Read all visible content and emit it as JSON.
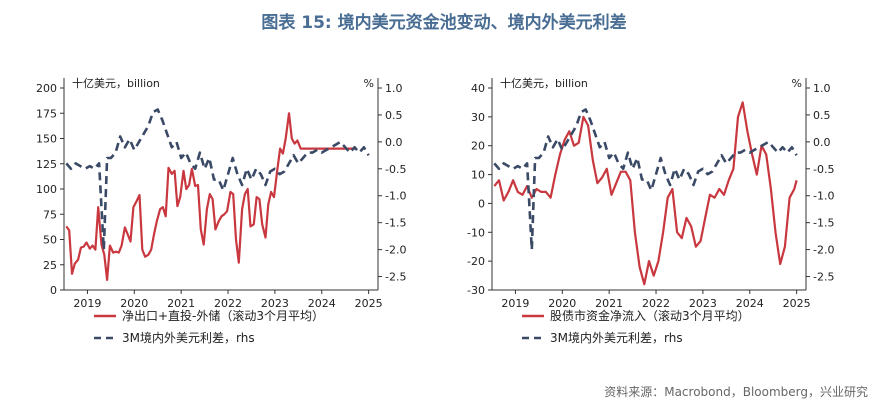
{
  "title": "图表 15: 境内美元资金池变动、境内外美元利差",
  "source": "资料来源：Macrobond，Bloomberg，兴业研究",
  "chart_data": [
    {
      "type": "line",
      "left_unit": "十亿美元，billion",
      "right_unit": "%",
      "left_ylim": [
        0,
        200
      ],
      "left_ticks": [
        "0",
        "25",
        "50",
        "75",
        "100",
        "125",
        "150",
        "175",
        "200"
      ],
      "right_ylim": [
        -2.75,
        1.0
      ],
      "right_ticks": [
        "1.0",
        "0.5",
        "0.0",
        "-0.5",
        "-1.0",
        "-1.5",
        "-2.0",
        "-2.5"
      ],
      "x_ticks": [
        "2019",
        "2020",
        "2021",
        "2022",
        "2023",
        "2024",
        "2025"
      ],
      "x_range": [
        2018.5,
        2025.2
      ],
      "series": [
        {
          "name": "净出口+直投-外储（滚动3个月平均）",
          "axis": "left",
          "color": "#c9373f",
          "style": "solid",
          "x": [
            2018.55,
            2018.61,
            2018.67,
            2018.73,
            2018.8,
            2018.86,
            2018.92,
            2018.98,
            2019.05,
            2019.11,
            2019.17,
            2019.23,
            2019.3,
            2019.36,
            2019.42,
            2019.48,
            2019.55,
            2019.61,
            2019.67,
            2019.73,
            2019.8,
            2019.86,
            2019.92,
            2019.98,
            2020.05,
            2020.11,
            2020.17,
            2020.23,
            2020.3,
            2020.36,
            2020.42,
            2020.48,
            2020.55,
            2020.61,
            2020.67,
            2020.73,
            2020.8,
            2020.86,
            2020.92,
            2020.98,
            2021.05,
            2021.11,
            2021.17,
            2021.23,
            2021.3,
            2021.36,
            2021.42,
            2021.48,
            2021.55,
            2021.61,
            2021.67,
            2021.73,
            2021.8,
            2021.86,
            2021.92,
            2021.98,
            2022.05,
            2022.11,
            2022.17,
            2022.23,
            2022.3,
            2022.36,
            2022.42,
            2022.48,
            2022.55,
            2022.61,
            2022.67,
            2022.73,
            2022.8,
            2022.86,
            2022.92,
            2022.98,
            2023.05,
            2023.11,
            2023.17,
            2023.23,
            2023.3,
            2023.36,
            2023.42,
            2023.48,
            2023.55,
            2023.61,
            2023.67,
            2023.73,
            2023.8,
            2023.86,
            2023.92,
            2023.98,
            2024.05,
            2024.11,
            2024.17,
            2024.23,
            2024.3,
            2024.36,
            2024.42,
            2024.48,
            2024.55,
            2024.61,
            2024.67,
            2024.73
          ],
          "values": [
            63,
            59,
            16,
            26,
            30,
            42,
            43,
            47,
            41,
            44,
            40,
            82,
            45,
            35,
            10,
            44,
            37,
            38,
            37,
            44,
            62,
            55,
            48,
            82,
            88,
            94,
            40,
            33,
            35,
            40,
            55,
            68,
            80,
            82,
            73,
            121,
            115,
            118,
            83,
            92,
            118,
            100,
            104,
            120,
            103,
            104,
            60,
            45,
            80,
            95,
            90,
            60,
            68,
            73,
            75,
            78,
            97,
            95,
            50,
            27,
            80,
            95,
            100,
            63,
            65,
            92,
            90,
            65,
            52,
            85,
            97,
            92,
            118,
            140,
            135,
            150,
            175,
            150,
            145,
            148,
            140,
            140,
            140,
            140,
            140,
            140,
            140,
            140,
            140,
            140,
            140,
            140,
            140,
            140,
            140,
            140,
            140,
            140,
            140,
            140
          ]
        },
        {
          "name": "3M境内外美元利差，rhs",
          "axis": "right",
          "color": "#3a4a66",
          "style": "dashed",
          "x": [
            2018.55,
            2018.65,
            2018.75,
            2018.85,
            2018.95,
            2019.05,
            2019.15,
            2019.25,
            2019.35,
            2019.42,
            2019.5,
            2019.6,
            2019.7,
            2019.8,
            2019.9,
            2020.0,
            2020.1,
            2020.2,
            2020.3,
            2020.4,
            2020.5,
            2020.6,
            2020.7,
            2020.8,
            2020.9,
            2021.0,
            2021.1,
            2021.2,
            2021.3,
            2021.4,
            2021.5,
            2021.6,
            2021.7,
            2021.8,
            2021.9,
            2022.0,
            2022.1,
            2022.2,
            2022.3,
            2022.4,
            2022.5,
            2022.6,
            2022.7,
            2022.8,
            2022.9,
            2023.0,
            2023.1,
            2023.2,
            2023.3,
            2023.4,
            2023.5,
            2023.6,
            2023.7,
            2023.8,
            2023.9,
            2024.0,
            2024.1,
            2024.2,
            2024.3,
            2024.4,
            2024.5,
            2024.6,
            2024.7,
            2024.8,
            2024.9,
            2025.0
          ],
          "values": [
            -0.4,
            -0.5,
            -0.4,
            -0.45,
            -0.5,
            -0.45,
            -0.5,
            -0.4,
            -2.0,
            -0.3,
            -0.3,
            -0.2,
            0.1,
            -0.1,
            0.05,
            -0.15,
            0.0,
            0.15,
            0.3,
            0.55,
            0.6,
            0.4,
            0.15,
            -0.1,
            0.0,
            -0.3,
            -0.2,
            -0.4,
            -0.5,
            -0.2,
            -0.5,
            -0.3,
            -0.7,
            -0.7,
            -0.9,
            -0.6,
            -0.3,
            -0.6,
            -0.8,
            -0.5,
            -0.7,
            -0.5,
            -0.6,
            -0.8,
            -0.55,
            -0.5,
            -0.6,
            -0.55,
            -0.4,
            -0.25,
            -0.4,
            -0.3,
            -0.2,
            -0.2,
            -0.15,
            -0.2,
            -0.15,
            -0.1,
            -0.05,
            0.0,
            -0.1,
            -0.2,
            -0.1,
            -0.2,
            -0.1,
            -0.25
          ]
        }
      ]
    },
    {
      "type": "line",
      "left_unit": "十亿美元，billion",
      "right_unit": "%",
      "left_ylim": [
        -30,
        40
      ],
      "left_ticks": [
        "-30",
        "-20",
        "-10",
        "0",
        "10",
        "20",
        "30",
        "40"
      ],
      "right_ylim": [
        -2.75,
        1.0
      ],
      "right_ticks": [
        "1.0",
        "0.5",
        "0.0",
        "-0.5",
        "-1.0",
        "-1.5",
        "-2.0",
        "-2.5"
      ],
      "x_ticks": [
        "2019",
        "2020",
        "2021",
        "2022",
        "2023",
        "2024",
        "2025"
      ],
      "x_range": [
        2018.5,
        2025.2
      ],
      "series": [
        {
          "name": "股债市资金净流入（滚动3个月平均）",
          "axis": "left",
          "color": "#c9373f",
          "style": "solid",
          "x": [
            2018.55,
            2018.65,
            2018.75,
            2018.85,
            2018.95,
            2019.05,
            2019.15,
            2019.25,
            2019.35,
            2019.45,
            2019.55,
            2019.65,
            2019.75,
            2019.85,
            2019.95,
            2020.05,
            2020.15,
            2020.25,
            2020.35,
            2020.45,
            2020.55,
            2020.65,
            2020.75,
            2020.85,
            2020.95,
            2021.05,
            2021.15,
            2021.25,
            2021.35,
            2021.45,
            2021.55,
            2021.65,
            2021.75,
            2021.85,
            2021.95,
            2022.05,
            2022.15,
            2022.25,
            2022.35,
            2022.45,
            2022.55,
            2022.65,
            2022.75,
            2022.85,
            2022.95,
            2023.05,
            2023.15,
            2023.25,
            2023.35,
            2023.45,
            2023.55,
            2023.65,
            2023.75,
            2023.85,
            2023.95,
            2024.05,
            2024.15,
            2024.25,
            2024.35,
            2024.45,
            2024.55,
            2024.65,
            2024.75,
            2024.85,
            2024.95,
            2025.0
          ],
          "values": [
            6,
            8,
            1,
            4,
            8,
            4,
            3,
            6,
            2,
            5,
            4,
            4,
            2,
            10,
            17,
            22,
            25,
            20,
            21,
            30,
            27,
            15,
            7,
            9,
            12,
            3,
            7,
            11,
            11,
            8,
            -10,
            -22,
            -28,
            -20,
            -25,
            -20,
            -10,
            2,
            5,
            -10,
            -12,
            -5,
            -8,
            -15,
            -13,
            -5,
            3,
            2,
            5,
            3,
            8,
            12,
            30,
            35,
            25,
            17,
            10,
            20,
            17,
            5,
            -10,
            -21,
            -15,
            2,
            5,
            8
          ]
        },
        {
          "name": "3M境内外美元利差，rhs",
          "axis": "right",
          "color": "#3a4a66",
          "style": "dashed",
          "x": [
            2018.55,
            2018.65,
            2018.75,
            2018.85,
            2018.95,
            2019.05,
            2019.15,
            2019.25,
            2019.35,
            2019.42,
            2019.5,
            2019.6,
            2019.7,
            2019.8,
            2019.9,
            2020.0,
            2020.1,
            2020.2,
            2020.3,
            2020.4,
            2020.5,
            2020.6,
            2020.7,
            2020.8,
            2020.9,
            2021.0,
            2021.1,
            2021.2,
            2021.3,
            2021.4,
            2021.5,
            2021.6,
            2021.7,
            2021.8,
            2021.9,
            2022.0,
            2022.1,
            2022.2,
            2022.3,
            2022.4,
            2022.5,
            2022.6,
            2022.7,
            2022.8,
            2022.9,
            2023.0,
            2023.1,
            2023.2,
            2023.3,
            2023.4,
            2023.5,
            2023.6,
            2023.7,
            2023.8,
            2023.9,
            2024.0,
            2024.1,
            2024.2,
            2024.3,
            2024.4,
            2024.5,
            2024.6,
            2024.7,
            2024.8,
            2024.9,
            2025.0
          ],
          "values": [
            -0.4,
            -0.5,
            -0.4,
            -0.45,
            -0.5,
            -0.45,
            -0.5,
            -0.4,
            -2.0,
            -0.3,
            -0.3,
            -0.2,
            0.1,
            -0.1,
            0.05,
            -0.15,
            0.0,
            0.15,
            0.3,
            0.55,
            0.6,
            0.4,
            0.15,
            -0.1,
            0.0,
            -0.3,
            -0.2,
            -0.4,
            -0.5,
            -0.2,
            -0.5,
            -0.3,
            -0.7,
            -0.7,
            -0.9,
            -0.6,
            -0.3,
            -0.6,
            -0.8,
            -0.5,
            -0.7,
            -0.5,
            -0.6,
            -0.8,
            -0.55,
            -0.5,
            -0.6,
            -0.55,
            -0.4,
            -0.25,
            -0.4,
            -0.3,
            -0.2,
            -0.2,
            -0.15,
            -0.2,
            -0.15,
            -0.1,
            -0.05,
            0.0,
            -0.1,
            -0.2,
            -0.1,
            -0.2,
            -0.1,
            -0.25
          ]
        }
      ]
    }
  ]
}
